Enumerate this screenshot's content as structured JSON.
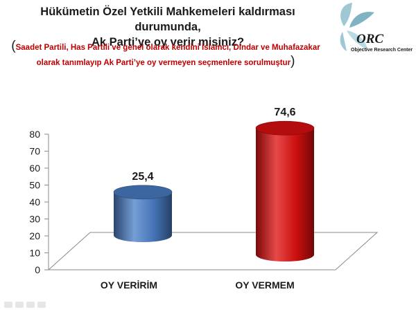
{
  "title_lines": [
    "Hükümetin Özel Yetkili Mahkemeleri kaldırması durumunda,",
    "Ak Parti’ye oy verir misiniz?"
  ],
  "subtitle_lines": [
    "Saadet Partili, Has Partili ve genel olarak kendini İslamcı, Dindar ve Muhafazakar",
    "olarak tanımlayıp Ak Parti’ye oy vermeyen seçmenlere sorulmuştur"
  ],
  "logo": {
    "brand": "ORC",
    "tagline": "Objective Research Center",
    "icon": "leaf-swirl-icon"
  },
  "colors": {
    "title": "#1a1a1a",
    "subtitle": "#c00000",
    "bar_blue": "#4a7fc8",
    "bar_red": "#e01010"
  },
  "chart_data": {
    "type": "bar",
    "categories": [
      "OY VERİRİM",
      "OY VERMEM"
    ],
    "values": [
      25.4,
      74.6
    ],
    "value_labels": [
      "25,4",
      "74,6"
    ],
    "bar_colors": [
      "#4a7fc8",
      "#e01010"
    ],
    "ylim": [
      0,
      80
    ],
    "yticks": [
      0,
      10,
      20,
      30,
      40,
      50,
      60,
      70,
      80
    ],
    "grid": false,
    "legend": "none",
    "style": "3d-cylinder"
  }
}
